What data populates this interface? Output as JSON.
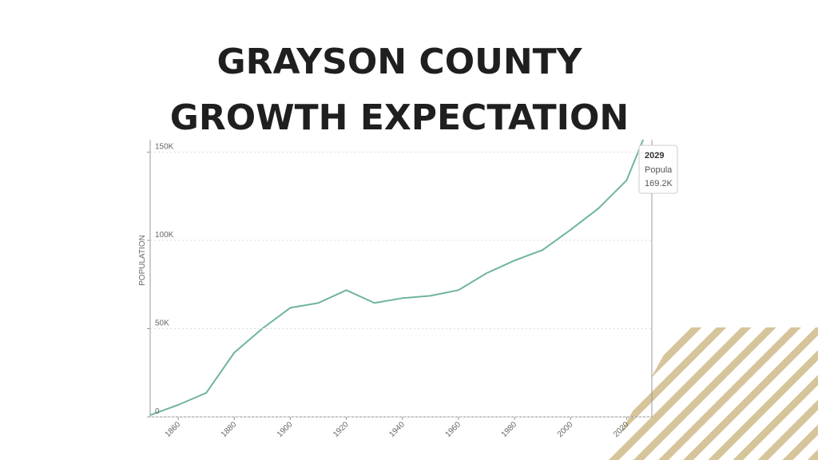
{
  "chart_data": {
    "type": "line",
    "title": [
      "GRAYSON COUNTY",
      "GROWTH EXPECTATION"
    ],
    "y_label": "POPULATION",
    "x": [
      1850,
      1860,
      1870,
      1880,
      1890,
      1900,
      1910,
      1920,
      1930,
      1940,
      1950,
      1960,
      1970,
      1980,
      1990,
      2000,
      2010,
      2020,
      2029
    ],
    "values": [
      1000,
      6800,
      13600,
      36400,
      50000,
      61800,
      64500,
      71800,
      64500,
      67300,
      68600,
      71800,
      81400,
      88600,
      94500,
      106000,
      118200,
      134000,
      169200
    ],
    "color": "#6fb3a0",
    "xlim": [
      1850,
      2029
    ],
    "xticks": [
      1860,
      1880,
      1900,
      1920,
      1940,
      1960,
      1980,
      2000,
      2020
    ],
    "ylim": [
      0,
      157000
    ],
    "yticks": [
      0,
      {
        "value": 50000,
        "label": "50K"
      },
      {
        "value": 100000,
        "label": "100K"
      },
      {
        "value": 150000,
        "label": "150K"
      }
    ],
    "grid": true,
    "tooltip": {
      "title": "2029",
      "series": "Popula",
      "value": "169.2K"
    }
  }
}
